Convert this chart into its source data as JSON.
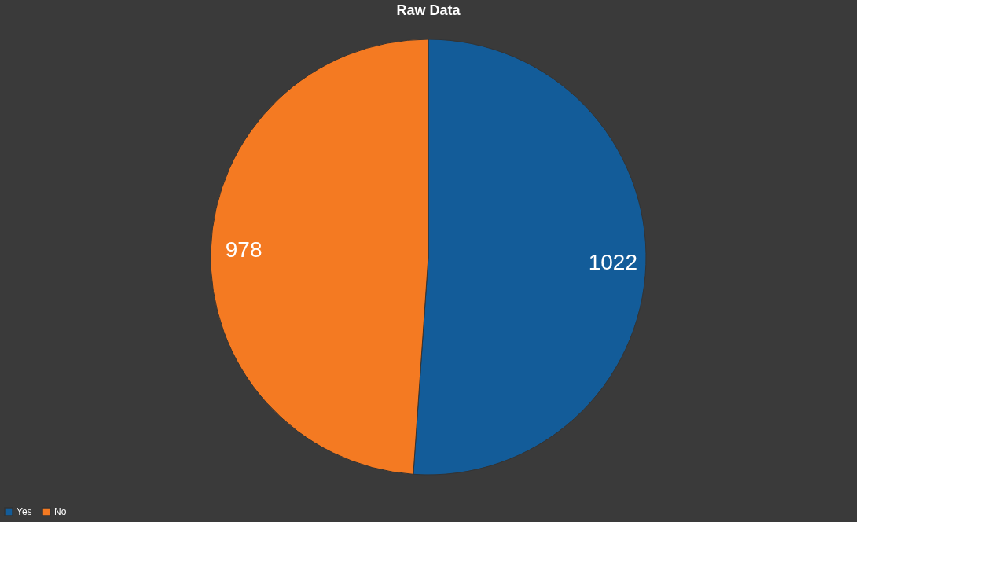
{
  "chart_data": {
    "type": "pie",
    "title": "Raw Data",
    "categories": [
      "Yes",
      "No"
    ],
    "values": [
      1022,
      978
    ],
    "colors": [
      "#135c99",
      "#f47a22"
    ],
    "data_labels": true,
    "legend": "bottom"
  }
}
